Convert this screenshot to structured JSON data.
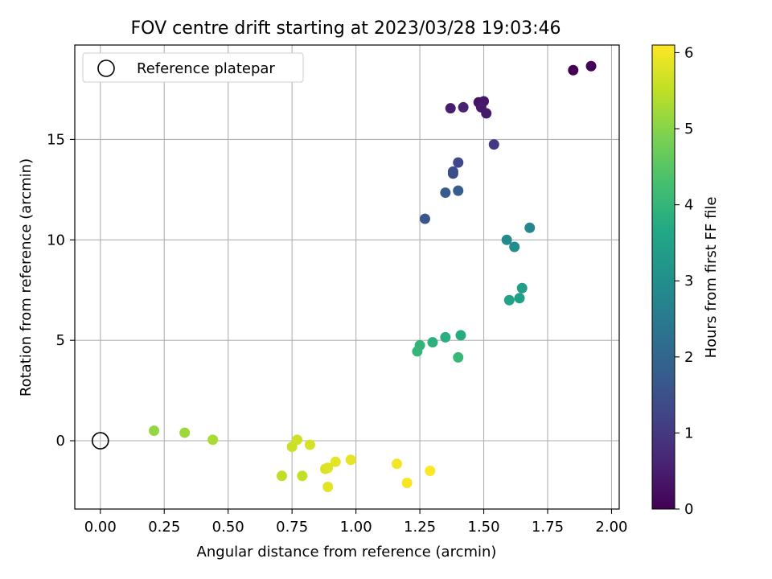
{
  "chart_data": {
    "type": "scatter",
    "title": "FOV centre drift starting at 2023/03/28 19:03:46",
    "xlabel": "Angular distance from reference (arcmin)",
    "ylabel": "Rotation from reference (arcmin)",
    "xlim": [
      -0.1,
      2.03
    ],
    "ylim": [
      -3.4,
      19.7
    ],
    "x_ticks": [
      0.0,
      0.25,
      0.5,
      0.75,
      1.0,
      1.25,
      1.5,
      1.75,
      2.0
    ],
    "x_tick_labels": [
      "0.00",
      "0.25",
      "0.50",
      "0.75",
      "1.00",
      "1.25",
      "1.50",
      "1.75",
      "2.00"
    ],
    "y_ticks": [
      0,
      5,
      10,
      15
    ],
    "y_tick_labels": [
      "0",
      "5",
      "10",
      "15"
    ],
    "grid": true,
    "legend": {
      "placement": "top-left",
      "entries": [
        {
          "label": "Reference platepar",
          "marker": "open-circle"
        }
      ]
    },
    "reference_point": {
      "x": 0.0,
      "y": 0.0
    },
    "colorbar": {
      "label": "Hours from first FF file",
      "colormap": "viridis",
      "range": [
        0,
        6.1
      ],
      "ticks": [
        0,
        1,
        2,
        3,
        4,
        5,
        6
      ],
      "tick_labels": [
        "0",
        "1",
        "2",
        "3",
        "4",
        "5",
        "6"
      ]
    },
    "points": [
      {
        "x": 1.85,
        "y": 18.45,
        "c": 0.0
      },
      {
        "x": 1.92,
        "y": 18.65,
        "c": 0.05
      },
      {
        "x": 1.48,
        "y": 16.85,
        "c": 0.3
      },
      {
        "x": 1.5,
        "y": 16.9,
        "c": 0.35
      },
      {
        "x": 1.49,
        "y": 16.6,
        "c": 0.4
      },
      {
        "x": 1.51,
        "y": 16.3,
        "c": 0.45
      },
      {
        "x": 1.37,
        "y": 16.55,
        "c": 0.5
      },
      {
        "x": 1.42,
        "y": 16.6,
        "c": 0.55
      },
      {
        "x": 1.54,
        "y": 14.75,
        "c": 1.0
      },
      {
        "x": 1.4,
        "y": 13.85,
        "c": 1.3
      },
      {
        "x": 1.38,
        "y": 13.3,
        "c": 1.4
      },
      {
        "x": 1.38,
        "y": 13.4,
        "c": 1.45
      },
      {
        "x": 1.27,
        "y": 11.05,
        "c": 1.6
      },
      {
        "x": 1.35,
        "y": 12.35,
        "c": 1.75
      },
      {
        "x": 1.4,
        "y": 12.45,
        "c": 1.8
      },
      {
        "x": 1.68,
        "y": 10.6,
        "c": 2.8
      },
      {
        "x": 1.59,
        "y": 10.0,
        "c": 2.9
      },
      {
        "x": 1.62,
        "y": 9.65,
        "c": 2.95
      },
      {
        "x": 1.65,
        "y": 7.6,
        "c": 3.4
      },
      {
        "x": 1.64,
        "y": 7.1,
        "c": 3.45
      },
      {
        "x": 1.6,
        "y": 7.0,
        "c": 3.5
      },
      {
        "x": 1.41,
        "y": 5.25,
        "c": 3.75
      },
      {
        "x": 1.35,
        "y": 5.15,
        "c": 3.8
      },
      {
        "x": 1.3,
        "y": 4.9,
        "c": 3.85
      },
      {
        "x": 1.25,
        "y": 4.75,
        "c": 3.95
      },
      {
        "x": 1.24,
        "y": 4.45,
        "c": 4.0
      },
      {
        "x": 1.4,
        "y": 4.15,
        "c": 4.05
      },
      {
        "x": 0.21,
        "y": 0.5,
        "c": 5.1
      },
      {
        "x": 0.33,
        "y": 0.4,
        "c": 5.2
      },
      {
        "x": 0.44,
        "y": 0.05,
        "c": 5.3
      },
      {
        "x": 0.71,
        "y": -1.75,
        "c": 5.5
      },
      {
        "x": 0.79,
        "y": -1.75,
        "c": 5.55
      },
      {
        "x": 0.75,
        "y": -0.3,
        "c": 5.6
      },
      {
        "x": 0.77,
        "y": 0.05,
        "c": 5.65
      },
      {
        "x": 0.82,
        "y": -0.2,
        "c": 5.7
      },
      {
        "x": 0.88,
        "y": -1.4,
        "c": 5.75
      },
      {
        "x": 0.89,
        "y": -1.35,
        "c": 5.8
      },
      {
        "x": 0.92,
        "y": -1.05,
        "c": 5.85
      },
      {
        "x": 0.89,
        "y": -2.3,
        "c": 5.85
      },
      {
        "x": 0.98,
        "y": -0.95,
        "c": 5.9
      },
      {
        "x": 1.16,
        "y": -1.15,
        "c": 6.0
      },
      {
        "x": 1.2,
        "y": -2.1,
        "c": 6.05
      },
      {
        "x": 1.29,
        "y": -1.5,
        "c": 6.08
      }
    ]
  }
}
